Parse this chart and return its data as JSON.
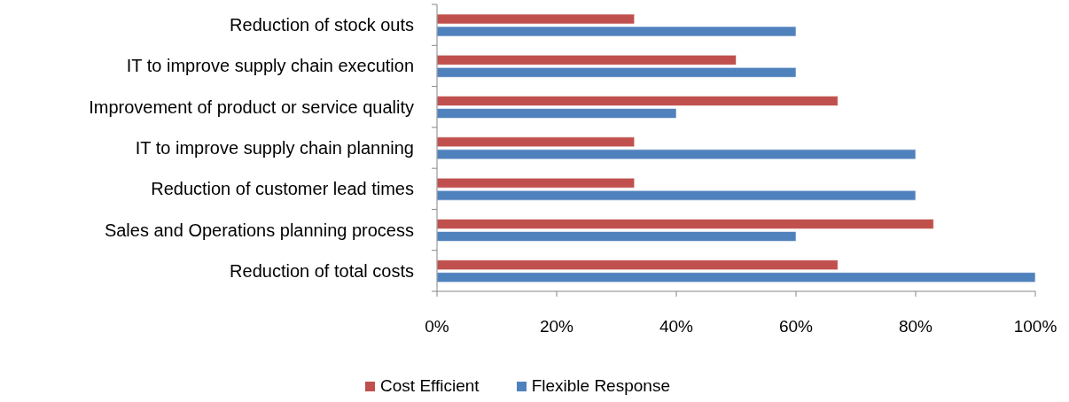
{
  "chart_data": {
    "type": "bar",
    "orientation": "horizontal",
    "categories": [
      "Reduction of stock outs",
      "IT to improve supply chain execution",
      "Improvement of product or service quality",
      "IT to improve supply chain planning",
      "Reduction of customer lead times",
      "Sales and Operations planning process",
      "Reduction of total costs"
    ],
    "series": [
      {
        "name": "Cost Efficient",
        "color": "#c0504d",
        "values": [
          33,
          50,
          67,
          33,
          33,
          83,
          67
        ]
      },
      {
        "name": "Flexible Response",
        "color": "#4f81bd",
        "values": [
          60,
          60,
          40,
          80,
          80,
          60,
          100
        ]
      }
    ],
    "xlim": [
      0,
      100
    ],
    "xticks": [
      {
        "value": 0,
        "label": "0%"
      },
      {
        "value": 20,
        "label": "20%"
      },
      {
        "value": 40,
        "label": "40%"
      },
      {
        "value": 60,
        "label": "60%"
      },
      {
        "value": 80,
        "label": "80%"
      },
      {
        "value": 100,
        "label": "100%"
      }
    ],
    "legend": "bottom"
  }
}
